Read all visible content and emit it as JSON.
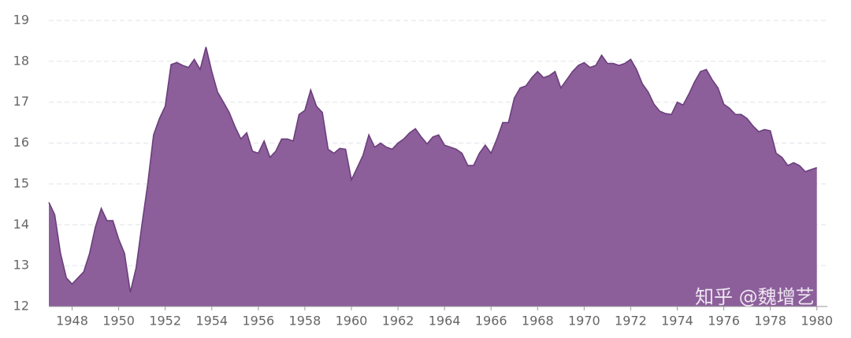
{
  "chart_data": {
    "type": "area",
    "x": [
      1947.0,
      1947.25,
      1947.5,
      1947.75,
      1948.0,
      1948.25,
      1948.5,
      1948.75,
      1949.0,
      1949.25,
      1949.5,
      1949.75,
      1950.0,
      1950.25,
      1950.5,
      1950.75,
      1951.0,
      1951.25,
      1951.5,
      1951.75,
      1952.0,
      1952.25,
      1952.5,
      1952.75,
      1953.0,
      1953.25,
      1953.5,
      1953.75,
      1954.0,
      1954.25,
      1954.5,
      1954.75,
      1955.0,
      1955.25,
      1955.5,
      1955.75,
      1956.0,
      1956.25,
      1956.5,
      1956.75,
      1957.0,
      1957.25,
      1957.5,
      1957.75,
      1958.0,
      1958.25,
      1958.5,
      1958.75,
      1959.0,
      1959.25,
      1959.5,
      1959.75,
      1960.0,
      1960.25,
      1960.5,
      1960.75,
      1961.0,
      1961.25,
      1961.5,
      1961.75,
      1962.0,
      1962.25,
      1962.5,
      1962.75,
      1963.0,
      1963.25,
      1963.5,
      1963.75,
      1964.0,
      1964.25,
      1964.5,
      1964.75,
      1965.0,
      1965.25,
      1965.5,
      1965.75,
      1966.0,
      1966.25,
      1966.5,
      1966.75,
      1967.0,
      1967.25,
      1967.5,
      1967.75,
      1968.0,
      1968.25,
      1968.5,
      1968.75,
      1969.0,
      1969.25,
      1969.5,
      1969.75,
      1970.0,
      1970.25,
      1970.5,
      1970.75,
      1971.0,
      1971.25,
      1971.5,
      1971.75,
      1972.0,
      1972.25,
      1972.5,
      1972.75,
      1973.0,
      1973.25,
      1973.5,
      1973.75,
      1974.0,
      1974.25,
      1974.5,
      1974.75,
      1975.0,
      1975.25,
      1975.5,
      1975.75,
      1976.0,
      1976.25,
      1976.5,
      1976.75,
      1977.0,
      1977.25,
      1977.5,
      1977.75,
      1978.0,
      1978.25,
      1978.5,
      1978.75,
      1979.0,
      1979.25,
      1979.5,
      1979.75,
      1980.0
    ],
    "values": [
      14.55,
      14.25,
      13.3,
      12.7,
      12.55,
      12.7,
      12.85,
      13.3,
      13.95,
      14.4,
      14.1,
      14.1,
      13.65,
      13.3,
      12.35,
      12.95,
      14.0,
      15.0,
      16.2,
      16.6,
      16.9,
      17.92,
      17.97,
      17.9,
      17.85,
      18.05,
      17.8,
      18.35,
      17.75,
      17.25,
      17.0,
      16.75,
      16.4,
      16.1,
      16.25,
      15.8,
      15.75,
      16.05,
      15.65,
      15.8,
      16.1,
      16.1,
      16.05,
      16.7,
      16.8,
      17.3,
      16.9,
      16.75,
      15.85,
      15.75,
      15.87,
      15.85,
      15.1,
      15.4,
      15.7,
      16.2,
      15.9,
      16.0,
      15.9,
      15.85,
      16.0,
      16.1,
      16.25,
      16.35,
      16.15,
      15.98,
      16.15,
      16.2,
      15.95,
      15.9,
      15.85,
      15.75,
      15.45,
      15.45,
      15.75,
      15.95,
      15.75,
      16.1,
      16.5,
      16.5,
      17.1,
      17.35,
      17.4,
      17.6,
      17.75,
      17.6,
      17.65,
      17.75,
      17.35,
      17.55,
      17.75,
      17.9,
      17.97,
      17.85,
      17.9,
      18.15,
      17.95,
      17.95,
      17.9,
      17.95,
      18.05,
      17.8,
      17.45,
      17.25,
      16.95,
      16.78,
      16.72,
      16.7,
      17.0,
      16.93,
      17.2,
      17.5,
      17.75,
      17.8,
      17.55,
      17.35,
      16.95,
      16.85,
      16.7,
      16.7,
      16.6,
      16.42,
      16.28,
      16.33,
      16.3,
      15.75,
      15.65,
      15.45,
      15.52,
      15.45,
      15.3,
      15.35,
      15.4
    ],
    "fill": "#8c5f9b",
    "line_color": "#6b3f7c",
    "xlim": [
      1947,
      1980.45
    ],
    "ylim": [
      12,
      19
    ],
    "xticks": [
      1948,
      1950,
      1952,
      1954,
      1956,
      1958,
      1960,
      1962,
      1964,
      1966,
      1968,
      1970,
      1972,
      1974,
      1976,
      1978,
      1980
    ],
    "yticks": [
      12,
      13,
      14,
      15,
      16,
      17,
      18,
      19
    ],
    "grid": true,
    "watermark": "知乎 @魏增艺"
  }
}
